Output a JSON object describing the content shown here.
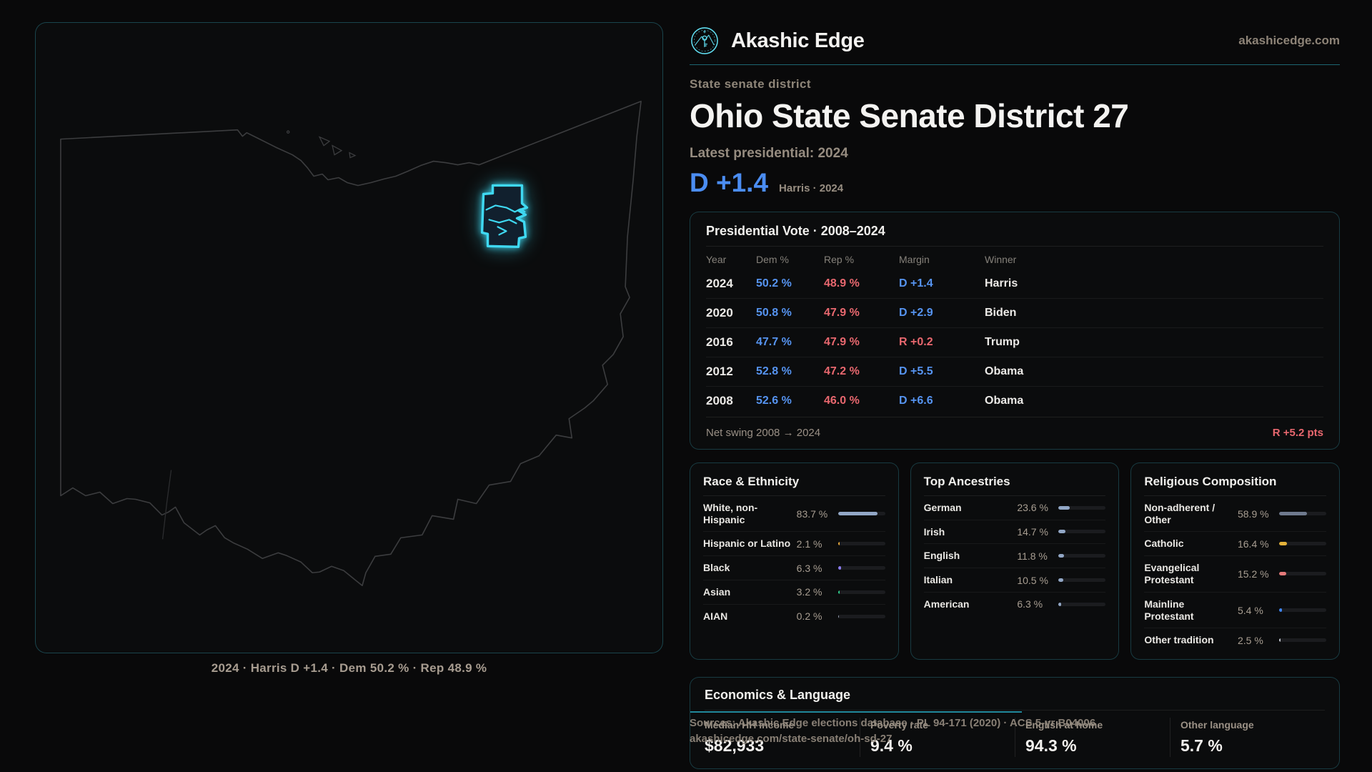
{
  "header": {
    "brand": "Akashic Edge",
    "site": "akashicedge.com",
    "kicker": "State senate district",
    "title": "Ohio State Senate District 27",
    "latest_label": "Latest presidential: 2024",
    "lean": "D +1.4",
    "lean_note": "Harris · 2024"
  },
  "map": {
    "caption": "2024 · Harris D +1.4 · Dem 50.2 % · Rep 48.9 %",
    "district_color": "#3fd9f2",
    "outline_color": "#3c3d3f"
  },
  "presidential": {
    "title": "Presidential Vote · 2008–2024",
    "columns": [
      "Year",
      "Dem %",
      "Rep %",
      "Margin",
      "Winner"
    ],
    "rows": [
      {
        "year": "2024",
        "dem": "50.2 %",
        "rep": "48.9 %",
        "margin": "D +1.4",
        "winner": "Harris"
      },
      {
        "year": "2020",
        "dem": "50.8 %",
        "rep": "47.9 %",
        "margin": "D +2.9",
        "winner": "Biden"
      },
      {
        "year": "2016",
        "dem": "47.7 %",
        "rep": "47.9 %",
        "margin": "R +0.2",
        "winner": "Trump"
      },
      {
        "year": "2012",
        "dem": "52.8 %",
        "rep": "47.2 %",
        "margin": "D +5.5",
        "winner": "Obama"
      },
      {
        "year": "2008",
        "dem": "52.6 %",
        "rep": "46.0 %",
        "margin": "D +6.6",
        "winner": "Obama"
      }
    ],
    "net_swing_label": "Net swing 2008 → 2024",
    "net_swing_value": "R +5.2 pts"
  },
  "race": {
    "title": "Race & Ethnicity",
    "rows": [
      {
        "label": "White, non-Hispanic",
        "value": "83.7 %",
        "pct": 83.7,
        "color": "#92a7c6"
      },
      {
        "label": "Hispanic or Latino",
        "value": "2.1 %",
        "pct": 2.1,
        "color": "#e7a93c"
      },
      {
        "label": "Black",
        "value": "6.3 %",
        "pct": 6.3,
        "color": "#8b7cf0"
      },
      {
        "label": "Asian",
        "value": "3.2 %",
        "pct": 3.2,
        "color": "#2fcf8c"
      },
      {
        "label": "AIAN",
        "value": "0.2 %",
        "pct": 0.2,
        "color": "#9aa3b5"
      }
    ]
  },
  "ancestries": {
    "title": "Top Ancestries",
    "rows": [
      {
        "label": "German",
        "value": "23.6 %",
        "pct": 23.6,
        "color": "#92a7c6"
      },
      {
        "label": "Irish",
        "value": "14.7 %",
        "pct": 14.7,
        "color": "#92a7c6"
      },
      {
        "label": "English",
        "value": "11.8 %",
        "pct": 11.8,
        "color": "#92a7c6"
      },
      {
        "label": "Italian",
        "value": "10.5 %",
        "pct": 10.5,
        "color": "#92a7c6"
      },
      {
        "label": "American",
        "value": "6.3 %",
        "pct": 6.3,
        "color": "#92a7c6"
      }
    ]
  },
  "religion": {
    "title": "Religious Composition",
    "rows": [
      {
        "label": "Non-adherent / Other",
        "value": "58.9 %",
        "pct": 58.9,
        "color": "#6f7a8e"
      },
      {
        "label": "Catholic",
        "value": "16.4 %",
        "pct": 16.4,
        "color": "#e5b23a"
      },
      {
        "label": "Evangelical Protestant",
        "value": "15.2 %",
        "pct": 15.2,
        "color": "#e57a7a"
      },
      {
        "label": "Mainline Protestant",
        "value": "5.4 %",
        "pct": 5.4,
        "color": "#3f86f4"
      },
      {
        "label": "Other tradition",
        "value": "2.5 %",
        "pct": 2.5,
        "color": "#c5cad2"
      }
    ]
  },
  "economics": {
    "title": "Economics & Language",
    "stats": [
      {
        "label": "Median HH income",
        "value": "$82,933"
      },
      {
        "label": "Poverty rate",
        "value": "9.4 %"
      },
      {
        "label": "English at home",
        "value": "94.3 %"
      },
      {
        "label": "Other language",
        "value": "5.7 %"
      }
    ]
  },
  "footer": {
    "line1": "Sources: Akashic Edge elections database · PL 94-171 (2020) · ACS 5-yr B04006",
    "line2": "akashicedge.com/state-senate/oh-sd-27"
  }
}
